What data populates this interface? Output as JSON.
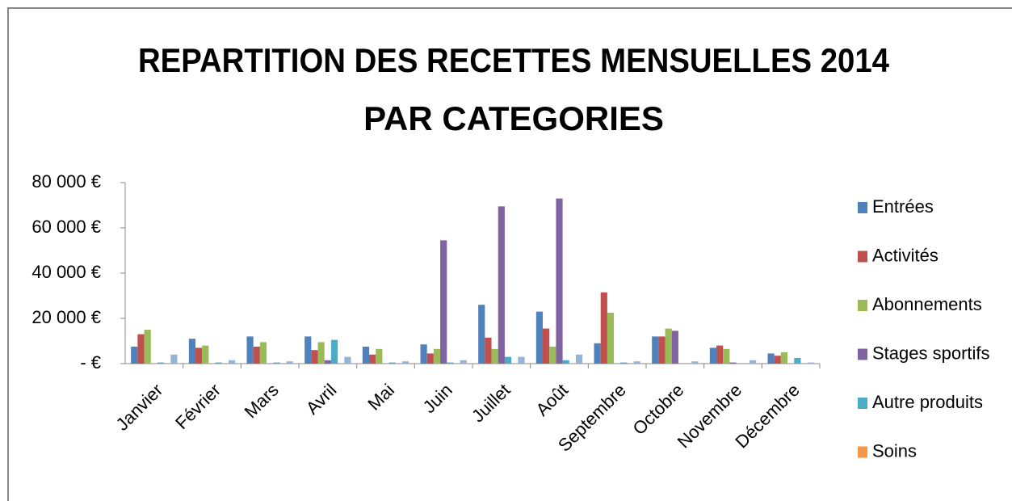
{
  "chart_data": {
    "type": "bar",
    "title": [
      "REPARTITION DES RECETTES MENSUELLES 2014",
      "PAR CATEGORIES"
    ],
    "categories": [
      "Janvier",
      "Février",
      "Mars",
      "Avril",
      "Mai",
      "Juin",
      "Juillet",
      "Août",
      "Septembre",
      "Octobre",
      "Novembre",
      "Décembre"
    ],
    "series": [
      {
        "name": "Entrées",
        "color": "#4f81bd",
        "values": [
          7500,
          11000,
          12000,
          12000,
          7500,
          8500,
          26000,
          23000,
          9000,
          12000,
          7000,
          4500
        ]
      },
      {
        "name": "Activités",
        "color": "#c0504d",
        "values": [
          13000,
          7000,
          7500,
          6000,
          4000,
          4500,
          11500,
          15500,
          31500,
          12000,
          8000,
          3500
        ]
      },
      {
        "name": "Abonnements",
        "color": "#9bbb59",
        "values": [
          15000,
          8000,
          9500,
          9500,
          6500,
          6500,
          6500,
          7500,
          22500,
          15500,
          6500,
          5000
        ]
      },
      {
        "name": "Stages sportifs",
        "color": "#8064a2",
        "values": [
          0,
          0,
          0,
          1500,
          0,
          54500,
          69500,
          73000,
          0,
          14500,
          500,
          0
        ]
      },
      {
        "name": "Autre produits",
        "color": "#4bacc6",
        "values": [
          500,
          500,
          500,
          10500,
          500,
          500,
          3000,
          1500,
          500,
          0,
          0,
          2500
        ]
      },
      {
        "name": "Soins",
        "color": "#f79646",
        "values": [
          0,
          0,
          0,
          0,
          0,
          0,
          0,
          0,
          0,
          0,
          0,
          0
        ]
      },
      {
        "color": "#95b3d7",
        "values": [
          4000,
          1500,
          1000,
          3000,
          1000,
          1500,
          3000,
          4000,
          1000,
          1000,
          1500,
          500
        ]
      }
    ],
    "ylim": [
      0,
      80000
    ],
    "yticks": [
      {
        "value": 0,
        "label": "-   €"
      },
      {
        "value": 20000,
        "label": "20 000 €"
      },
      {
        "value": 40000,
        "label": "40 000 €"
      },
      {
        "value": 60000,
        "label": "60 000 €"
      },
      {
        "value": 80000,
        "label": "80 000 €"
      }
    ],
    "grid": false,
    "legend": "right"
  }
}
